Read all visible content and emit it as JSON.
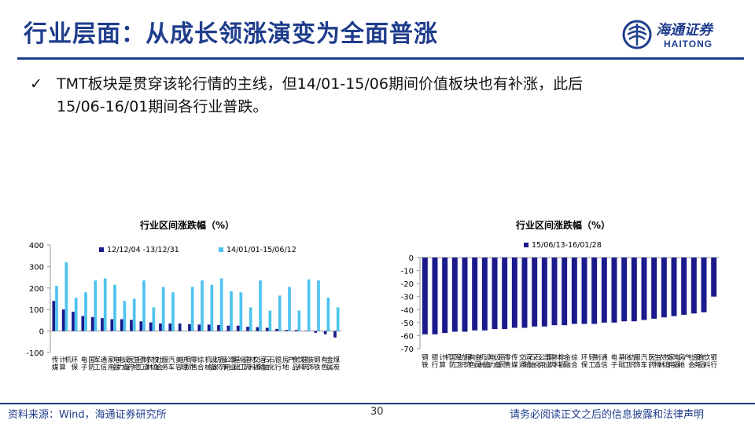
{
  "header": {
    "title": "行业层面：从成长领涨演变为全面普涨",
    "logo_cn": "海通证券",
    "logo_en": "HAITONG"
  },
  "bullet": {
    "check": "✓",
    "text_line1": "TMT板块是贯穿该轮行情的主线，但14/01-15/06期间价值板块也有补涨，此后",
    "text_line2": "15/06-16/01期间各行业普跌。"
  },
  "footer": {
    "source": "资料来源：Wind，海通证券研究所",
    "page": "30",
    "disclaimer": "请务必阅读正文之后的信息披露和法律声明"
  },
  "colors": {
    "brand": "#1f3d8c",
    "series_dark": "#1a1a8c",
    "series_light": "#4fc3f0"
  },
  "chart_data": [
    {
      "type": "bar",
      "title": "行业区间涨跌幅（%）",
      "categories": [
        "传媒",
        "计算机",
        "环保",
        "电子",
        "国防军工",
        "通信",
        "家用电器",
        "电力设备",
        "医药生物",
        "轻工制造",
        "农林牧渔",
        "社会服务",
        "汽车",
        "美容护理",
        "商贸零售",
        "综合",
        "机械设备",
        "纺织服饰",
        "公用事业",
        "基础化工",
        "建筑材料",
        "交通运输",
        "石油石化",
        "银行",
        "房地产",
        "食品饮料",
        "建筑装饰",
        "钢铁",
        "有色金属",
        "煤炭"
      ],
      "series": [
        {
          "name": "12/12/04 -13/12/31",
          "values": [
            140,
            100,
            90,
            70,
            65,
            60,
            55,
            55,
            52,
            45,
            40,
            35,
            35,
            35,
            32,
            30,
            30,
            28,
            25,
            25,
            20,
            18,
            15,
            10,
            5,
            5,
            0,
            -8,
            -15,
            -30
          ]
        },
        {
          "name": "14/01/01-15/06/12",
          "values": [
            210,
            320,
            155,
            180,
            235,
            245,
            215,
            140,
            150,
            235,
            110,
            205,
            180,
            2,
            205,
            235,
            215,
            245,
            185,
            180,
            110,
            235,
            95,
            165,
            205,
            95,
            240,
            235,
            155,
            110
          ]
        }
      ],
      "ylim": [
        -100,
        400
      ],
      "yticks": [
        -100,
        0,
        100,
        200,
        300,
        400
      ],
      "legend": "top"
    },
    {
      "type": "bar",
      "title": "行业区间涨跌幅（%）",
      "categories": [
        "钢铁",
        "银行",
        "计算机",
        "国防军工",
        "纺织服饰",
        "有色金属",
        "机械设备",
        "电力设备",
        "商贸零售",
        "传媒",
        "交通运输",
        "石油石化",
        "公用事业",
        "建筑材料",
        "非银金融",
        "综合",
        "环保",
        "轻工制造",
        "通信",
        "电子",
        "基础化工",
        "纺织服饰",
        "汽车",
        "医药生物",
        "农林牧渔",
        "家用电器",
        "房地产",
        "社会服务",
        "食品饮料",
        "银行"
      ],
      "series": [
        {
          "name": "15/06/13-16/01/28",
          "values": [
            -59,
            -59,
            -58,
            -57,
            -57,
            -56,
            -56,
            -55,
            -55,
            -54,
            -54,
            -53,
            -53,
            -52,
            -52,
            -51,
            -51,
            -51,
            -50,
            -50,
            -49,
            -49,
            -48,
            -47,
            -46,
            -45,
            -44,
            -43,
            -42,
            -30
          ]
        }
      ],
      "ylim": [
        -70,
        0
      ],
      "yticks": [
        -70,
        -60,
        -50,
        -40,
        -30,
        -20,
        -10,
        0
      ],
      "legend": "top"
    }
  ]
}
